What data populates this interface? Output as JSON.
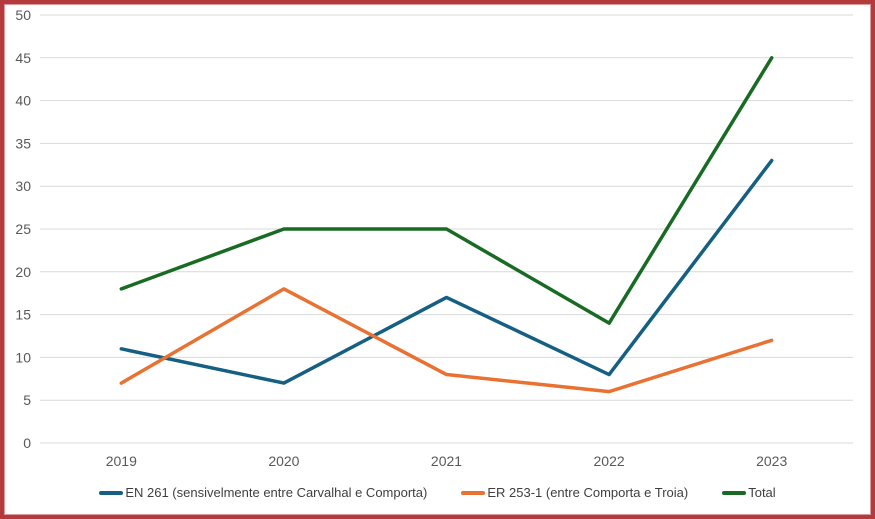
{
  "chart_data": {
    "type": "line",
    "title": "",
    "xlabel": "",
    "ylabel": "",
    "categories": [
      "2019",
      "2020",
      "2021",
      "2022",
      "2023"
    ],
    "series": [
      {
        "name": "EN 261 (sensivelmente entre Carvalhal e Comporta)",
        "values": [
          11,
          7,
          17,
          8,
          33
        ],
        "color": "#156082"
      },
      {
        "name": "ER 253-1 (entre Comporta e Troia)",
        "values": [
          7,
          18,
          8,
          6,
          12
        ],
        "color": "#E97132"
      },
      {
        "name": "Total",
        "values": [
          18,
          25,
          25,
          14,
          45
        ],
        "color": "#196B24"
      }
    ],
    "ylim": [
      0,
      50
    ],
    "ytick_step": 5,
    "yticks": [
      0,
      5,
      10,
      15,
      20,
      25,
      30,
      35,
      40,
      45,
      50
    ],
    "grid": "horizontal",
    "legend_position": "bottom"
  },
  "style": {
    "grid_color": "#d9d9d9",
    "tick_label_color": "#595959",
    "legend_text_color": "#3f3f3f",
    "frame_border_color": "#b43a3e",
    "background_color": "#ffffff",
    "line_width": 3.5
  }
}
